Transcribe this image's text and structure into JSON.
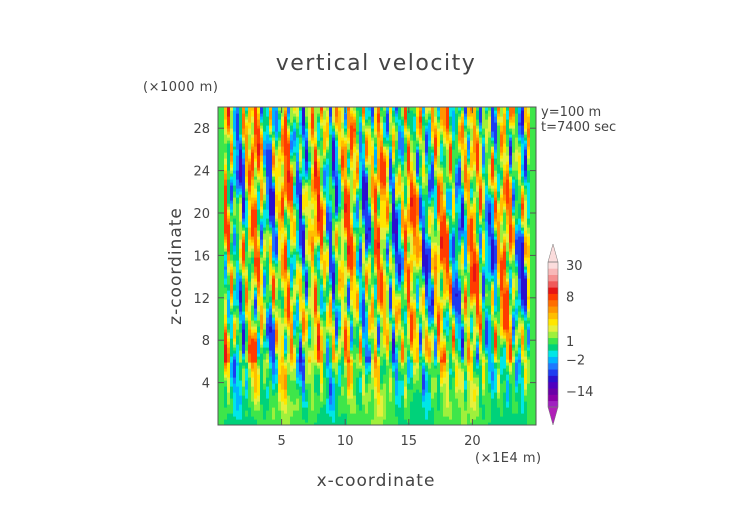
{
  "chart_data": {
    "type": "heatmap",
    "title": "vertical velocity",
    "xlabel": "x-coordinate",
    "ylabel": "z-coordinate",
    "x_unit": "(×1E4 m)",
    "y_unit": "(×1000 m)",
    "info_lines": [
      "y=100 m",
      "t=7400 sec"
    ],
    "x_ticks": [
      5,
      10,
      15,
      20
    ],
    "y_ticks": [
      4,
      8,
      12,
      16,
      20,
      24,
      28
    ],
    "xlim": [
      0,
      25
    ],
    "ylim": [
      0,
      30
    ],
    "colorbar": {
      "tick_labels": [
        "30",
        "8",
        "1",
        "−2",
        "−14"
      ],
      "levels": [
        -20,
        -17,
        -14,
        -11,
        -8,
        -5,
        -3,
        -2,
        -1,
        0,
        1,
        2,
        3,
        4,
        5,
        6,
        7,
        8,
        12,
        16,
        20,
        25,
        30
      ],
      "colors": [
        "#a020c0",
        "#8a00a8",
        "#6a00a8",
        "#5000c0",
        "#2a10d0",
        "#1e3cf0",
        "#1e78ff",
        "#00b4ff",
        "#00e6e6",
        "#00d27a",
        "#3ee64a",
        "#9ff03c",
        "#e6f03c",
        "#ffe600",
        "#ffbe00",
        "#ff9600",
        "#ff6e00",
        "#ff3c00",
        "#e61414",
        "#f05a5a",
        "#f59090",
        "#f8b8b8",
        "#fbdcdc"
      ]
    }
  }
}
